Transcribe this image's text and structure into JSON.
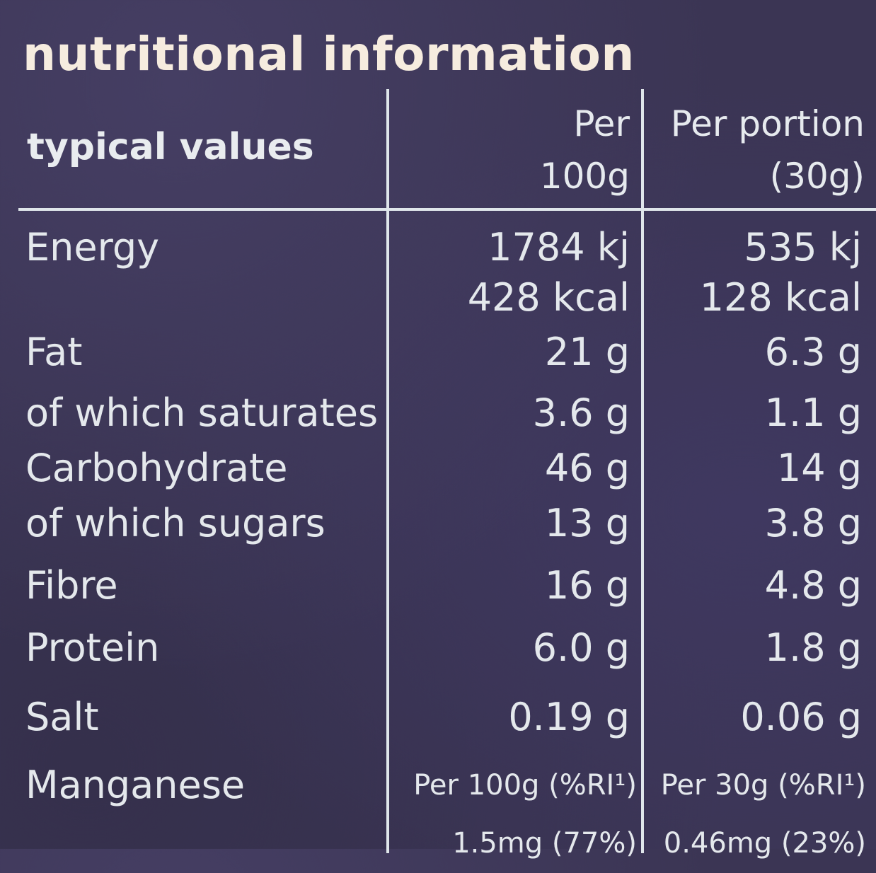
{
  "title": "nutritional information",
  "header": {
    "label": "typical values",
    "col1_line1": "Per",
    "col1_line2": "100g",
    "col2_line1": "Per portion",
    "col2_line2": "(30g)"
  },
  "energy": {
    "name": "Energy",
    "per100_kj": "1784 kj",
    "per100_kcal": "428 kcal",
    "portion_kj": "535 kj",
    "portion_kcal": "128 kcal"
  },
  "rows": [
    {
      "name": "Fat",
      "per100": "21 g",
      "portion": "6.3 g"
    },
    {
      "name": "of which saturates",
      "per100": "3.6 g",
      "portion": "1.1 g"
    },
    {
      "name": "Carbohydrate",
      "per100": "46 g",
      "portion": "14 g"
    },
    {
      "name": "of which sugars",
      "per100": "13 g",
      "portion": "3.8 g"
    },
    {
      "name": "Fibre",
      "per100": "16 g",
      "portion": "4.8 g"
    },
    {
      "name": "Protein",
      "per100": "6.0 g",
      "portion": "1.8 g"
    },
    {
      "name": "Salt",
      "per100": "0.19 g",
      "portion": "0.06 g"
    }
  ],
  "manganese": {
    "name": "Manganese",
    "per100_label": "Per 100g (%RI¹)",
    "portion_label": "Per 30g (%RI¹)",
    "per100_value": "1.5mg (77%)",
    "portion_value": "0.46mg (23%)"
  }
}
